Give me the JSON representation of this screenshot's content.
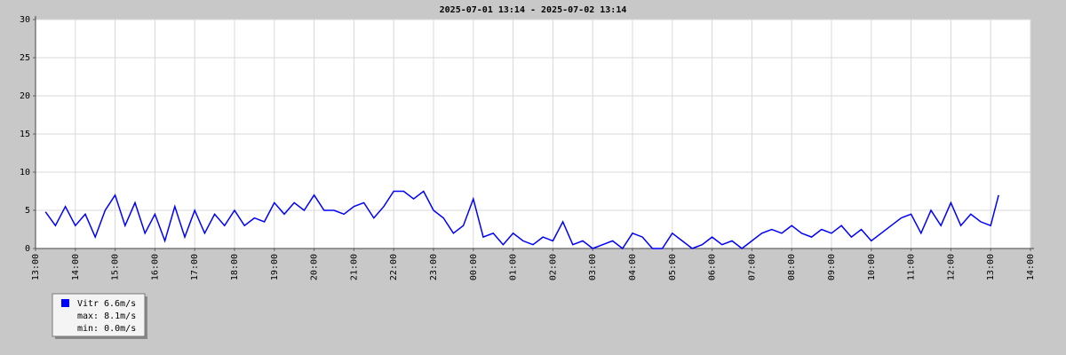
{
  "chart_data": {
    "type": "line",
    "title": "2025-07-01 13:14 - 2025-07-02 13:14",
    "xlim": [
      13,
      38
    ],
    "xticks": [
      {
        "value": 13,
        "label": "13:00"
      },
      {
        "value": 14,
        "label": "14:00"
      },
      {
        "value": 15,
        "label": "15:00"
      },
      {
        "value": 16,
        "label": "16:00"
      },
      {
        "value": 17,
        "label": "17:00"
      },
      {
        "value": 18,
        "label": "18:00"
      },
      {
        "value": 19,
        "label": "19:00"
      },
      {
        "value": 20,
        "label": "20:00"
      },
      {
        "value": 21,
        "label": "21:00"
      },
      {
        "value": 22,
        "label": "22:00"
      },
      {
        "value": 23,
        "label": "23:00"
      },
      {
        "value": 24,
        "label": "00:00"
      },
      {
        "value": 25,
        "label": "01:00"
      },
      {
        "value": 26,
        "label": "02:00"
      },
      {
        "value": 27,
        "label": "03:00"
      },
      {
        "value": 28,
        "label": "04:00"
      },
      {
        "value": 29,
        "label": "05:00"
      },
      {
        "value": 30,
        "label": "06:00"
      },
      {
        "value": 31,
        "label": "07:00"
      },
      {
        "value": 32,
        "label": "08:00"
      },
      {
        "value": 33,
        "label": "09:00"
      },
      {
        "value": 34,
        "label": "10:00"
      },
      {
        "value": 35,
        "label": "11:00"
      },
      {
        "value": 36,
        "label": "12:00"
      },
      {
        "value": 37,
        "label": "13:00"
      },
      {
        "value": 38,
        "label": "14:00"
      }
    ],
    "ylim": [
      0,
      30
    ],
    "yticks": [
      0,
      5,
      10,
      15,
      20,
      25,
      30
    ],
    "grid": true,
    "x": [
      13.25,
      13.5,
      13.75,
      14,
      14.25,
      14.5,
      14.75,
      15,
      15.25,
      15.5,
      15.75,
      16,
      16.25,
      16.5,
      16.75,
      17,
      17.25,
      17.5,
      17.75,
      18,
      18.25,
      18.5,
      18.75,
      19,
      19.25,
      19.5,
      19.75,
      20,
      20.25,
      20.5,
      20.75,
      21,
      21.25,
      21.5,
      21.75,
      22,
      22.25,
      22.5,
      22.75,
      23,
      23.25,
      23.5,
      23.75,
      24,
      24.25,
      24.5,
      24.75,
      25,
      25.25,
      25.5,
      25.75,
      26,
      26.25,
      26.5,
      26.75,
      27,
      27.25,
      27.5,
      27.75,
      28,
      28.25,
      28.5,
      28.75,
      29,
      29.25,
      29.5,
      29.75,
      30,
      30.25,
      30.5,
      30.75,
      31,
      31.25,
      31.5,
      31.75,
      32,
      32.25,
      32.5,
      32.75,
      33,
      33.25,
      33.5,
      33.75,
      34,
      34.25,
      34.5,
      34.75,
      35,
      35.25,
      35.5,
      35.75,
      36,
      36.25,
      36.5,
      36.75,
      37,
      37.2
    ],
    "series": [
      {
        "name": "Vitr",
        "color": "#0000ff",
        "values": [
          4.8,
          3,
          5.5,
          3,
          4.5,
          1.5,
          5,
          7,
          3,
          6,
          2,
          4.5,
          1,
          5.5,
          1.5,
          5,
          2,
          4.5,
          3,
          5,
          3,
          4,
          3.5,
          6,
          4.5,
          6,
          5,
          7,
          5,
          5,
          4.5,
          5.5,
          6,
          4,
          5.5,
          7.5,
          7.5,
          6.5,
          7.5,
          5,
          4,
          2,
          3,
          6.5,
          1.5,
          2,
          0.5,
          2,
          1,
          0.5,
          1.5,
          1,
          3.5,
          0.5,
          1,
          0,
          0.5,
          1,
          0,
          2,
          1.5,
          0,
          0,
          2,
          1,
          0,
          0.5,
          1.5,
          0.5,
          1,
          0,
          1,
          2,
          2.5,
          2,
          3,
          2,
          1.5,
          2.5,
          2,
          3,
          1.5,
          2.5,
          1,
          2,
          3,
          4,
          4.5,
          2,
          5,
          3,
          6,
          3,
          4.5,
          3.5,
          3,
          7
        ]
      }
    ],
    "legend_lines": [
      "6.6m/s",
      "max: 8.1m/s",
      "min: 0.0m/s"
    ]
  }
}
